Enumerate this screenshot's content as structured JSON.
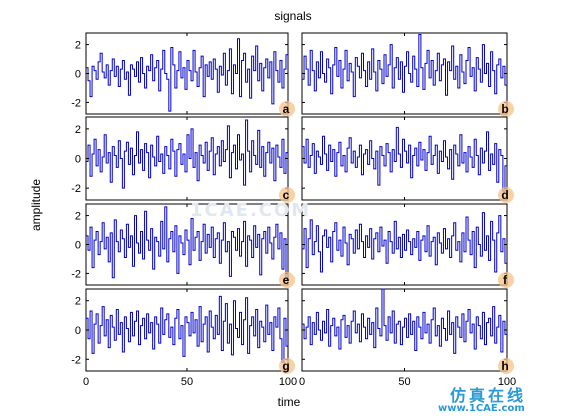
{
  "figure": {
    "title": "signals",
    "xlabel": "time",
    "ylabel": "amplitude"
  },
  "colors": {
    "line": "#0000cc",
    "axes": "#000000",
    "badge": "#f5c28a"
  },
  "watermark": {
    "top": "1CAE.COM",
    "cn": "仿真在线",
    "url": "www.1CAE.com"
  },
  "chart_data": {
    "type": "line",
    "step": true,
    "layout": "4x2 small multiples",
    "xlim": [
      0,
      100
    ],
    "ylim": [
      -2.8,
      2.8
    ],
    "xticks": [
      0,
      50,
      100
    ],
    "yticks": [
      -2,
      0,
      2
    ],
    "grid": false,
    "series": [
      {
        "panel": "a",
        "values": [
          0.4,
          -0.5,
          -1.6,
          0.5,
          0.2,
          -0.4,
          0.8,
          1.4,
          0.1,
          -0.3,
          0.6,
          -0.8,
          0.2,
          1.0,
          -0.2,
          0.5,
          -0.9,
          0.3,
          0.9,
          -0.4,
          0.1,
          -1.5,
          0.6,
          0.3,
          -0.2,
          0.8,
          -0.6,
          1.1,
          0.0,
          -1.0,
          0.5,
          0.2,
          1.3,
          -0.5,
          0.4,
          0.9,
          -1.2,
          0.3,
          1.6,
          0.0,
          -0.4,
          -2.6,
          1.8,
          0.6,
          -1.0,
          0.2,
          1.5,
          -0.3,
          0.4,
          -1.1,
          0.9,
          0.2,
          -0.5,
          1.6,
          0.1,
          -0.9,
          0.4,
          1.2,
          -1.6,
          0.6,
          -0.2,
          0.8,
          -0.4,
          1.0,
          0.3,
          -1.3,
          0.5,
          -0.1,
          1.4,
          -0.8,
          0.2,
          1.7,
          -1.4,
          0.6,
          0.0,
          2.4,
          -1.6,
          0.9,
          1.4,
          -0.6,
          0.3,
          -1.7,
          1.2,
          0.2,
          1.9,
          -0.5,
          0.7,
          -1.2,
          0.4,
          1.0,
          -0.3,
          0.8,
          -2.1,
          1.5,
          0.2,
          -0.6,
          0.9,
          -1.0,
          0.3,
          1.3
        ]
      },
      {
        "panel": "b",
        "values": [
          -0.4,
          1.2,
          0.3,
          -0.8,
          1.6,
          0.2,
          -1.2,
          0.8,
          -0.3,
          1.5,
          0.0,
          -0.6,
          1.0,
          0.4,
          -1.4,
          0.6,
          1.8,
          -0.2,
          0.9,
          -1.0,
          0.3,
          1.6,
          -0.5,
          0.7,
          0.1,
          -1.6,
          1.1,
          0.5,
          -0.3,
          1.4,
          0.2,
          -0.9,
          0.8,
          -0.4,
          1.7,
          0.1,
          -1.2,
          0.9,
          0.3,
          -0.7,
          1.3,
          -0.2,
          0.6,
          2.0,
          -1.0,
          0.4,
          1.1,
          -0.4,
          0.8,
          -1.3,
          0.5,
          1.5,
          0.0,
          -0.6,
          1.2,
          0.3,
          -0.9,
          2.7,
          0.4,
          -1.1,
          0.7,
          1.6,
          -0.3,
          0.9,
          -0.8,
          0.2,
          1.4,
          -0.5,
          0.6,
          1.0,
          -1.5,
          0.8,
          0.2,
          1.9,
          -0.4,
          0.5,
          -1.0,
          1.3,
          0.1,
          -0.7,
          0.9,
          1.8,
          -0.2,
          0.4,
          -1.2,
          1.1,
          0.3,
          -0.6,
          2.0,
          0.0,
          0.7,
          -0.9,
          1.5,
          0.2,
          -1.4,
          0.6,
          1.0,
          -0.3,
          0.5,
          -0.8
        ]
      },
      {
        "panel": "c",
        "values": [
          -0.2,
          0.9,
          -1.2,
          0.3,
          1.3,
          -0.5,
          0.6,
          -0.9,
          0.1,
          1.6,
          -0.3,
          0.4,
          -1.6,
          0.8,
          0.2,
          -0.6,
          1.2,
          0.0,
          -2.0,
          0.5,
          1.1,
          -0.4,
          0.7,
          -1.1,
          0.2,
          1.8,
          -0.3,
          0.6,
          -0.8,
          1.0,
          0.4,
          -1.3,
          0.9,
          0.1,
          -0.5,
          1.5,
          -0.2,
          0.3,
          -1.0,
          0.8,
          0.2,
          -0.7,
          1.3,
          0.5,
          -1.2,
          0.6,
          1.0,
          -0.4,
          0.3,
          -0.9,
          1.6,
          0.0,
          2.0,
          -0.6,
          0.4,
          -1.5,
          0.9,
          0.2,
          -0.3,
          1.1,
          -0.8,
          0.5,
          1.4,
          -1.1,
          0.3,
          0.8,
          -0.5,
          1.2,
          -0.2,
          0.6,
          2.2,
          -1.3,
          0.4,
          0.9,
          -0.7,
          1.6,
          -0.1,
          0.3,
          -1.8,
          2.6,
          0.5,
          -0.9,
          1.2,
          0.2,
          -0.4,
          1.9,
          -0.6,
          0.8,
          -1.2,
          0.4,
          1.1,
          -0.3,
          0.7,
          -1.5,
          0.9,
          0.1,
          -0.6,
          1.3,
          -1.0,
          0.4
        ]
      },
      {
        "panel": "d",
        "values": [
          0.8,
          -0.3,
          1.3,
          -0.6,
          0.2,
          1.0,
          -1.0,
          0.5,
          0.1,
          -0.4,
          1.5,
          0.3,
          -0.8,
          0.9,
          -0.2,
          0.6,
          -1.2,
          0.4,
          1.1,
          -0.5,
          0.2,
          -0.9,
          0.7,
          1.4,
          -0.3,
          0.5,
          -0.6,
          0.1,
          0.9,
          -1.1,
          0.3,
          0.6,
          -0.4,
          1.2,
          0.0,
          -0.7,
          0.5,
          -1.8,
          0.8,
          0.2,
          -0.5,
          1.0,
          0.4,
          -0.9,
          0.6,
          -0.2,
          2.1,
          0.3,
          -0.6,
          1.3,
          0.5,
          -0.3,
          0.9,
          -1.3,
          0.2,
          0.7,
          -0.5,
          1.1,
          -0.1,
          0.6,
          -0.8,
          0.4,
          1.5,
          -0.4,
          0.2,
          0.9,
          -1.0,
          0.5,
          -0.2,
          1.2,
          0.1,
          -0.7,
          0.6,
          -1.4,
          0.9,
          0.3,
          -0.5,
          1.6,
          -0.3,
          0.4,
          -0.9,
          0.8,
          0.1,
          -0.6,
          1.3,
          0.2,
          -1.1,
          0.7,
          -0.3,
          0.5,
          1.8,
          -0.8,
          0.3,
          -0.4,
          1.0,
          -1.6,
          0.6,
          0.2,
          -2.2,
          -0.5
        ]
      },
      {
        "panel": "e",
        "values": [
          0.6,
          -0.4,
          1.2,
          -1.6,
          0.3,
          0.9,
          -0.7,
          0.2,
          1.5,
          -0.3,
          0.5,
          -1.2,
          0.8,
          -2.3,
          1.7,
          0.2,
          -0.5,
          1.0,
          0.4,
          -0.9,
          1.4,
          -0.2,
          0.6,
          -1.5,
          2.0,
          0.1,
          -0.6,
          0.9,
          -1.0,
          2.3,
          0.3,
          -0.4,
          1.1,
          -1.7,
          0.5,
          0.2,
          -0.8,
          1.6,
          -0.3,
          2.6,
          -1.2,
          0.4,
          0.9,
          -0.5,
          1.3,
          -2.0,
          0.6,
          0.1,
          -0.7,
          1.0,
          0.3,
          -1.4,
          1.8,
          -0.4,
          0.5,
          0.9,
          -1.1,
          0.2,
          1.4,
          -0.6,
          0.7,
          -0.2,
          1.2,
          -0.9,
          0.4,
          0.8,
          -1.3,
          0.3,
          1.5,
          -0.5,
          0.2,
          -2.2,
          0.9,
          0.5,
          -0.4,
          1.1,
          -0.8,
          0.2,
          1.6,
          -1.5,
          0.6,
          0.3,
          -0.9,
          1.3,
          -0.2,
          0.7,
          -2.1,
          0.4,
          0.9,
          -0.6,
          1.2,
          0.1,
          -1.0,
          0.5,
          1.4,
          -0.3,
          0.8,
          -1.7,
          0.4,
          -2.4
        ]
      },
      {
        "panel": "f",
        "values": [
          -0.3,
          1.1,
          -1.6,
          0.4,
          1.7,
          -0.7,
          0.2,
          1.3,
          -0.5,
          -1.9,
          0.6,
          1.0,
          -0.2,
          0.5,
          -1.2,
          0.9,
          1.5,
          -0.4,
          0.3,
          -0.8,
          1.2,
          0.1,
          -1.4,
          0.7,
          0.4,
          -0.6,
          1.0,
          -0.3,
          1.4,
          0.2,
          -0.9,
          0.6,
          -0.2,
          1.1,
          -1.0,
          0.4,
          0.8,
          -0.5,
          1.2,
          -0.1,
          0.3,
          -1.3,
          0.9,
          0.2,
          -0.6,
          1.6,
          -0.3,
          0.5,
          -0.9,
          0.7,
          -0.4,
          1.0,
          0.2,
          -0.7,
          0.4,
          -0.2,
          0.9,
          -1.1,
          0.3,
          0.6,
          -0.5,
          1.3,
          -0.8,
          0.2,
          0.5,
          -1.4,
          0.8,
          0.1,
          -0.6,
          1.1,
          -0.3,
          0.4,
          -0.9,
          0.6,
          1.5,
          -0.4,
          0.2,
          -1.2,
          0.8,
          -0.5,
          1.9,
          0.3,
          -0.7,
          0.9,
          -1.6,
          1.2,
          0.0,
          -0.8,
          2.2,
          -0.4,
          0.6,
          -1.1,
          1.6,
          0.3,
          -1.9,
          0.8,
          2.0,
          -0.5,
          0.4,
          -1.3
        ]
      },
      {
        "panel": "g",
        "values": [
          0.8,
          -0.6,
          1.3,
          -1.6,
          0.4,
          1.1,
          -0.9,
          0.3,
          1.6,
          -0.4,
          0.7,
          -1.2,
          1.0,
          0.2,
          -0.7,
          1.4,
          -0.3,
          0.5,
          -1.5,
          0.9,
          0.1,
          -0.8,
          1.2,
          -0.4,
          0.6,
          1.3,
          -1.0,
          0.3,
          0.8,
          -0.6,
          1.1,
          -0.2,
          0.5,
          -1.3,
          0.9,
          0.4,
          -0.9,
          1.5,
          -0.3,
          0.7,
          1.1,
          -0.5,
          0.2,
          -1.0,
          0.8,
          1.4,
          -0.6,
          0.3,
          -1.8,
          0.9,
          0.5,
          -0.4,
          1.2,
          -0.2,
          0.7,
          -1.1,
          1.6,
          -0.8,
          0.4,
          0.9,
          -1.5,
          1.3,
          0.2,
          -0.6,
          1.0,
          -0.3,
          2.3,
          -1.4,
          0.6,
          1.8,
          -0.9,
          0.4,
          -1.7,
          2.0,
          0.1,
          -0.5,
          1.2,
          -1.0,
          0.7,
          2.2,
          -1.6,
          0.3,
          0.9,
          -0.4,
          1.4,
          -1.2,
          0.6,
          0.2,
          -0.8,
          1.7,
          -0.3,
          0.5,
          -1.4,
          0.9,
          0.2,
          1.5,
          -0.6,
          -2.2,
          0.8,
          -1.1
        ]
      },
      {
        "panel": "h",
        "values": [
          0.4,
          -0.6,
          0.2,
          0.9,
          -1.0,
          0.5,
          -0.3,
          1.2,
          0.0,
          -0.7,
          0.6,
          -0.2,
          1.4,
          -1.1,
          0.3,
          0.8,
          -0.4,
          0.2,
          -1.3,
          0.7,
          1.0,
          -0.5,
          0.3,
          -0.9,
          0.6,
          1.3,
          -0.2,
          0.4,
          -0.8,
          1.1,
          0.2,
          -0.6,
          0.8,
          -0.3,
          0.5,
          -1.2,
          1.5,
          0.1,
          -0.4,
          2.8,
          0.3,
          -0.7,
          0.9,
          -0.2,
          1.3,
          -0.9,
          0.4,
          0.6,
          -1.0,
          0.2,
          0.8,
          -0.5,
          1.1,
          -0.3,
          0.6,
          -1.4,
          0.9,
          0.2,
          -0.6,
          1.2,
          -0.2,
          0.4,
          -0.9,
          0.7,
          1.5,
          -0.4,
          0.3,
          -1.1,
          0.8,
          0.1,
          -0.7,
          1.3,
          -0.3,
          0.5,
          -1.6,
          0.9,
          0.2,
          -0.5,
          1.1,
          -0.8,
          0.6,
          1.4,
          -0.2,
          0.4,
          -1.3,
          0.9,
          0.3,
          -0.6,
          1.2,
          -1.0,
          0.5,
          0.8,
          -0.4,
          1.6,
          -0.9,
          0.2,
          1.0,
          -1.5,
          0.6,
          -0.3
        ]
      }
    ]
  }
}
